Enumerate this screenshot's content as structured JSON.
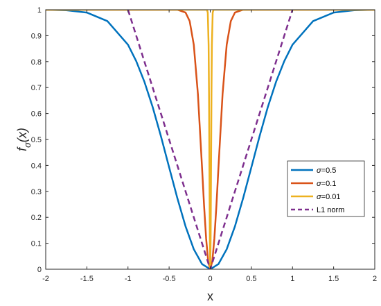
{
  "chart_data": {
    "type": "line",
    "xlabel": "x",
    "ylabel": {
      "main": "f",
      "sub": "σ",
      "arg": "(x)"
    },
    "xlim": [
      -2,
      2
    ],
    "ylim": [
      0,
      1
    ],
    "xticks": [
      -2,
      -1.5,
      -1,
      -0.5,
      0,
      0.5,
      1,
      1.5,
      2
    ],
    "xtick_labels": [
      "-2",
      "-1.5",
      "-1",
      "-0.5",
      "0",
      "0.5",
      "1",
      "1.5",
      "2"
    ],
    "yticks": [
      0,
      0.1,
      0.2,
      0.3,
      0.4,
      0.5,
      0.6,
      0.7,
      0.8,
      0.9,
      1
    ],
    "ytick_labels": [
      "0",
      "0.1",
      "0.2",
      "0.3",
      "0.4",
      "0.5",
      "0.6",
      "0.7",
      "0.8",
      "0.9",
      "1"
    ],
    "grid": false,
    "legend_position": "right",
    "series": [
      {
        "name": "σ=0.5",
        "legend_prefix": "σ",
        "legend_suffix": "=0.5",
        "color": "#0072BD",
        "style": "solid",
        "x": [
          -2,
          -1.75,
          -1.5,
          -1.25,
          -1,
          -0.9,
          -0.8,
          -0.7,
          -0.6,
          -0.5,
          -0.4,
          -0.3,
          -0.2,
          -0.1,
          0,
          0.1,
          0.2,
          0.3,
          0.4,
          0.5,
          0.6,
          0.7,
          0.8,
          0.9,
          1,
          1.25,
          1.5,
          1.75,
          2
        ],
        "y": [
          1.0,
          0.998,
          0.989,
          0.956,
          0.865,
          0.802,
          0.722,
          0.625,
          0.513,
          0.393,
          0.274,
          0.165,
          0.077,
          0.02,
          0.0,
          0.02,
          0.077,
          0.165,
          0.274,
          0.393,
          0.513,
          0.625,
          0.722,
          0.802,
          0.865,
          0.956,
          0.989,
          0.998,
          1.0
        ]
      },
      {
        "name": "σ=0.1",
        "legend_prefix": "σ",
        "legend_suffix": "=0.1",
        "color": "#D95319",
        "style": "solid",
        "x": [
          -2,
          -0.4,
          -0.3,
          -0.25,
          -0.2,
          -0.15,
          -0.1,
          -0.075,
          -0.05,
          -0.025,
          0,
          0.025,
          0.05,
          0.075,
          0.1,
          0.15,
          0.2,
          0.25,
          0.3,
          0.4,
          2
        ],
        "y": [
          1.0,
          1.0,
          0.989,
          0.956,
          0.865,
          0.675,
          0.393,
          0.245,
          0.118,
          0.031,
          0.0,
          0.031,
          0.118,
          0.245,
          0.393,
          0.675,
          0.865,
          0.956,
          0.989,
          1.0,
          1.0
        ]
      },
      {
        "name": "σ=0.01",
        "legend_prefix": "σ",
        "legend_suffix": "=0.01",
        "color": "#EDB120",
        "style": "solid",
        "x": [
          -2,
          -0.04,
          -0.03,
          -0.02,
          -0.015,
          -0.01,
          -0.005,
          0,
          0.005,
          0.01,
          0.015,
          0.02,
          0.03,
          0.04,
          2
        ],
        "y": [
          1.0,
          1.0,
          0.989,
          0.865,
          0.675,
          0.393,
          0.118,
          0.0,
          0.118,
          0.393,
          0.675,
          0.865,
          0.989,
          1.0,
          1.0
        ]
      },
      {
        "name": "L1 norm",
        "legend_prefix": "",
        "legend_suffix": "L1 norm",
        "color": "#7E2F8E",
        "style": "dashed",
        "x": [
          -1,
          0,
          1
        ],
        "y": [
          1,
          0,
          1
        ]
      }
    ]
  }
}
